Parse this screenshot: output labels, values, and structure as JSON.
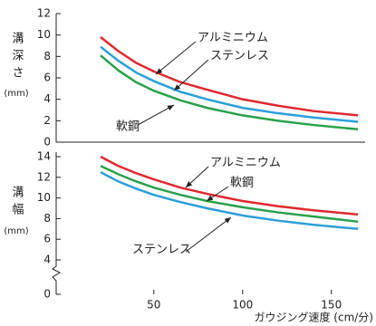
{
  "chart_data": [
    {
      "type": "line",
      "y_label": "溝深さ",
      "y_unit": "(mm)",
      "x": [
        20,
        30,
        40,
        50,
        65,
        80,
        100,
        120,
        140,
        165
      ],
      "series": [
        {
          "name": "アルミニウム",
          "color": "#e0282e",
          "values": [
            9.8,
            8.5,
            7.4,
            6.6,
            5.6,
            4.9,
            4.0,
            3.4,
            2.9,
            2.5
          ]
        },
        {
          "name": "ステンレス",
          "color": "#2a9fd8",
          "values": [
            8.9,
            7.6,
            6.5,
            5.7,
            4.7,
            4.0,
            3.2,
            2.7,
            2.3,
            1.9
          ]
        },
        {
          "name": "軟鋼",
          "color": "#2aa04a",
          "values": [
            8.1,
            6.7,
            5.6,
            4.8,
            3.9,
            3.2,
            2.5,
            2.0,
            1.6,
            1.2
          ]
        }
      ],
      "xlim": [
        -5,
        169
      ],
      "ylim": [
        0,
        12
      ],
      "yticks": [
        0,
        2,
        4,
        6,
        8,
        10,
        12
      ]
    },
    {
      "type": "line",
      "y_label": "溝幅",
      "y_unit": "(mm)",
      "x_label": "ガウジング速度 (cm/分)",
      "x": [
        20,
        30,
        40,
        50,
        65,
        80,
        100,
        120,
        140,
        165
      ],
      "series": [
        {
          "name": "アルミニウム",
          "color": "#e0282e",
          "values": [
            14.0,
            13.1,
            12.4,
            11.8,
            11.0,
            10.4,
            9.7,
            9.2,
            8.8,
            8.4
          ]
        },
        {
          "name": "軟鋼",
          "color": "#2aa04a",
          "values": [
            13.1,
            12.3,
            11.6,
            11.0,
            10.3,
            9.7,
            9.1,
            8.6,
            8.2,
            7.7
          ]
        },
        {
          "name": "ステンレス",
          "color": "#2a9fd8",
          "values": [
            12.5,
            11.6,
            10.9,
            10.3,
            9.6,
            9.0,
            8.3,
            7.8,
            7.4,
            7.0
          ]
        }
      ],
      "xlim": [
        -5,
        169
      ],
      "xticks": [
        50,
        100,
        150
      ],
      "ylim": [
        0,
        14
      ],
      "y_break": [
        0,
        4
      ],
      "yticks": [
        0,
        4,
        6,
        8,
        10,
        12,
        14
      ]
    }
  ]
}
